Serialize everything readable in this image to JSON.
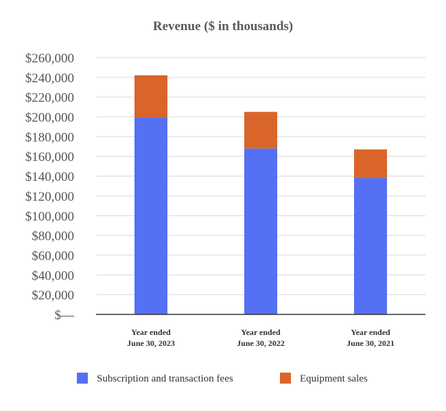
{
  "chart_data": {
    "type": "bar",
    "stacked": true,
    "title": "Revenue ($ in thousands)",
    "xlabel": "",
    "ylabel": "",
    "categories": [
      [
        "Year ended",
        "June 30, 2023"
      ],
      [
        "Year ended",
        "June 30, 2022"
      ],
      [
        "Year ended",
        "June 30, 2021"
      ]
    ],
    "series": [
      {
        "name": "Subscription and transaction fees",
        "color": "#5470f3",
        "values": [
          199000,
          168000,
          138000
        ]
      },
      {
        "name": "Equipment sales",
        "color": "#d9652a",
        "values": [
          43000,
          37000,
          29000
        ]
      }
    ],
    "ylim": [
      0,
      260000
    ],
    "ytick_step": 20000,
    "yticks": [
      "$—",
      "$20,000",
      "$40,000",
      "$60,000",
      "$80,000",
      "$100,000",
      "$120,000",
      "$140,000",
      "$160,000",
      "$180,000",
      "$200,000",
      "$220,000",
      "$240,000",
      "$260,000"
    ],
    "grid": true,
    "legend": "bottom"
  }
}
